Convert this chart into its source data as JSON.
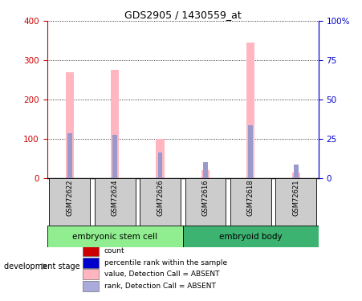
{
  "title": "GDS2905 / 1430559_at",
  "samples": [
    "GSM72622",
    "GSM72624",
    "GSM72626",
    "GSM72616",
    "GSM72618",
    "GSM72621"
  ],
  "pink_values": [
    270,
    275,
    100,
    20,
    345,
    15
  ],
  "blue_rank_pct": [
    28.75,
    27.5,
    16.25,
    10.0,
    33.75,
    8.75
  ],
  "groups": [
    {
      "label": "embryonic stem cell",
      "start": 0,
      "end": 2,
      "color": "#90EE90"
    },
    {
      "label": "embryoid body",
      "start": 3,
      "end": 5,
      "color": "#3CB371"
    }
  ],
  "ylim_left": [
    0,
    400
  ],
  "yticks_left": [
    0,
    100,
    200,
    300,
    400
  ],
  "ytick_labels_left": [
    "0",
    "100",
    "200",
    "300",
    "400"
  ],
  "yticks_right_pct": [
    0,
    25,
    50,
    75,
    100
  ],
  "ytick_labels_right": [
    "0",
    "25",
    "50",
    "75",
    "100%"
  ],
  "left_axis_color": "#CC0000",
  "right_axis_color": "#0000CC",
  "pink_color": "#FFB6C1",
  "blue_color": "#9999CC",
  "sample_box_color": "#CCCCCC",
  "legend_items": [
    {
      "label": "count",
      "color": "#CC0000"
    },
    {
      "label": "percentile rank within the sample",
      "color": "#0000CC"
    },
    {
      "label": "value, Detection Call = ABSENT",
      "color": "#FFB6C1"
    },
    {
      "label": "rank, Detection Call = ABSENT",
      "color": "#AAAADD"
    }
  ],
  "development_stage_label": "development stage",
  "tick_label_size": 7.5,
  "title_fontsize": 9
}
